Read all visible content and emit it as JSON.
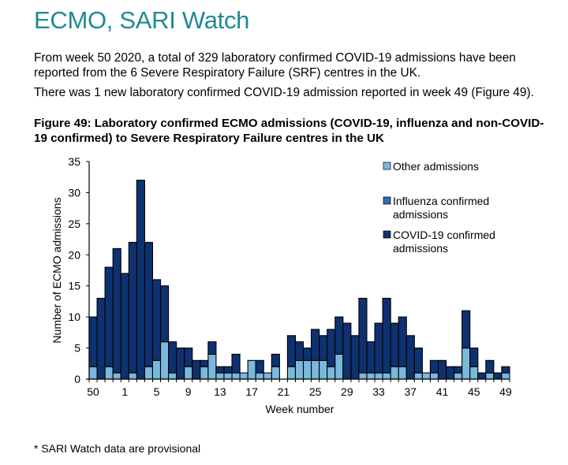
{
  "header": {
    "title": "ECMO, SARI Watch",
    "paragraph1": "From week 50 2020, a total of 329 laboratory confirmed COVID-19 admissions have been reported from the 6 Severe Respiratory Failure (SRF) centres in the UK.",
    "paragraph2": "There was 1 new laboratory confirmed COVID-19 admission reported in week 49 (Figure 49).",
    "figure_caption": "Figure 49: Laboratory confirmed ECMO admissions (COVID-19, influenza and non-COVID-19 confirmed) to Severe Respiratory Failure centres in the UK"
  },
  "footnote": "* SARI Watch data are provisional",
  "colors": {
    "other": "#7ab8dc",
    "influenza": "#2e6fb0",
    "covid": "#0e3170",
    "title": "#1f8a95"
  },
  "chart_data": {
    "type": "bar",
    "stacked": true,
    "title": "Figure 49: Laboratory confirmed ECMO admissions (COVID-19, influenza and non-COVID-19 confirmed) to Severe Respiratory Failure centres in the UK",
    "xlabel": "Week number",
    "ylabel": "Number of ECMO admissions",
    "ylim": [
      0,
      35
    ],
    "yticks": [
      0,
      5,
      10,
      15,
      20,
      25,
      30,
      35
    ],
    "xtick_labels": [
      "50",
      "1",
      "5",
      "9",
      "13",
      "17",
      "21",
      "25",
      "29",
      "33",
      "37",
      "41",
      "45",
      "49"
    ],
    "grid": false,
    "legend_position": "top-right",
    "categories": [
      "50",
      "51",
      "52",
      "53",
      "1",
      "2",
      "3",
      "4",
      "5",
      "6",
      "7",
      "8",
      "9",
      "10",
      "11",
      "12",
      "13",
      "14",
      "15",
      "16",
      "17",
      "18",
      "19",
      "20",
      "21",
      "22",
      "23",
      "24",
      "25",
      "26",
      "27",
      "28",
      "29",
      "30",
      "31",
      "32",
      "33",
      "34",
      "35",
      "36",
      "37",
      "38",
      "39",
      "40",
      "41",
      "42",
      "43",
      "44",
      "45",
      "46",
      "47",
      "48",
      "49"
    ],
    "series": [
      {
        "name": "Other admissions",
        "values": [
          2,
          0,
          2,
          1,
          0,
          1,
          0,
          2,
          3,
          6,
          1,
          0,
          2,
          0,
          2,
          4,
          1,
          1,
          1,
          1,
          3,
          1,
          1,
          2,
          0,
          2,
          3,
          3,
          3,
          3,
          2,
          4,
          0,
          0,
          1,
          1,
          1,
          1,
          2,
          2,
          0,
          1,
          1,
          1,
          0,
          0,
          1,
          5,
          2,
          0,
          1,
          0,
          1
        ]
      },
      {
        "name": "Influenza confirmed admissions",
        "values": [
          0,
          0,
          0,
          0,
          0,
          0,
          0,
          0,
          0,
          0,
          0,
          0,
          0,
          0,
          0,
          0,
          0,
          0,
          0,
          0,
          0,
          0,
          0,
          0,
          0,
          0,
          0,
          0,
          0,
          0,
          0,
          0,
          0,
          0,
          0,
          0,
          0,
          0,
          0,
          0,
          0,
          0,
          0,
          0,
          0,
          0,
          0,
          0,
          0,
          0,
          0,
          0,
          0
        ]
      },
      {
        "name": "COVID-19 confirmed admissions",
        "values": [
          8,
          13,
          16,
          20,
          17,
          21,
          32,
          20,
          13,
          9,
          5,
          5,
          3,
          3,
          1,
          2,
          1,
          1,
          3,
          0,
          0,
          2,
          0,
          2,
          0,
          5,
          3,
          2,
          5,
          4,
          6,
          6,
          9,
          7,
          12,
          5,
          8,
          12,
          7,
          8,
          7,
          4,
          0,
          2,
          3,
          2,
          1,
          6,
          3,
          1,
          2,
          1,
          1
        ]
      }
    ]
  }
}
